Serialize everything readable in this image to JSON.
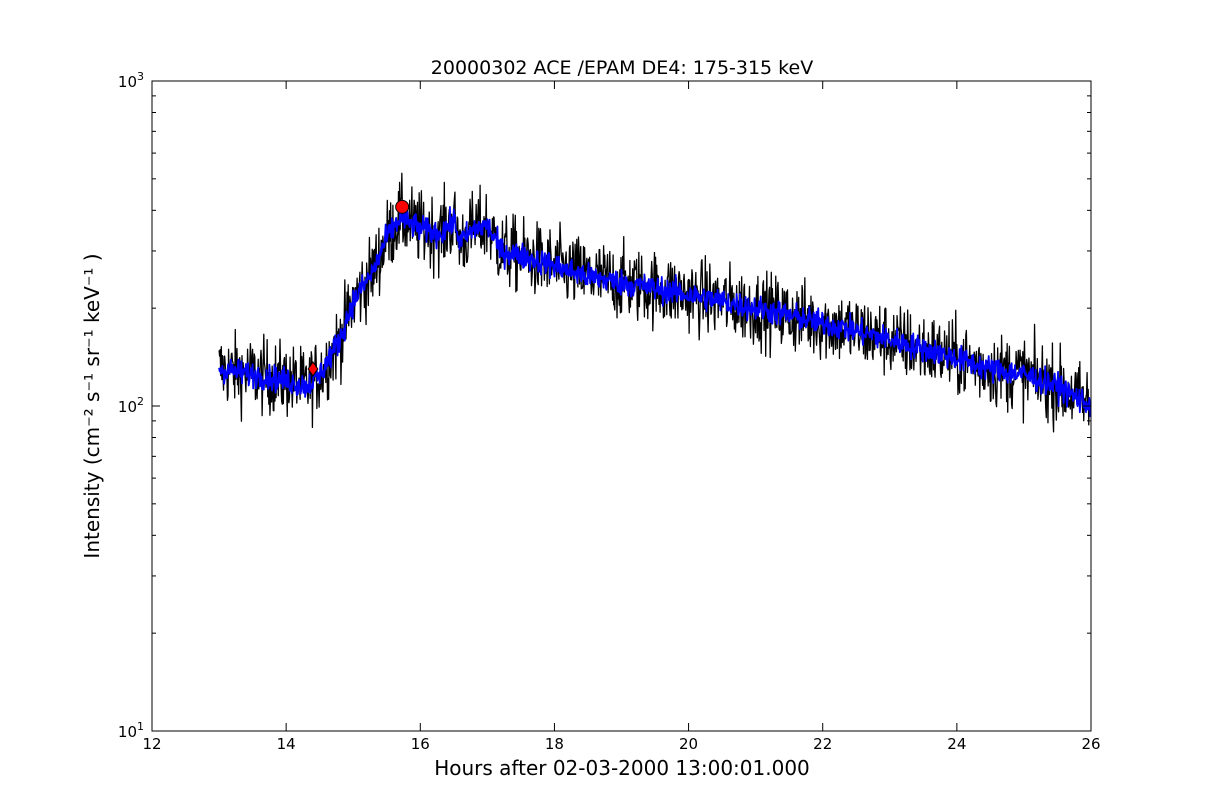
{
  "chart_data": {
    "type": "line",
    "title": "20000302 ACE /EPAM DE4: 175-315 keV",
    "xlabel": "Hours after 02-03-2000 13:00:01.000",
    "ylabel": "Intensity (cm⁻² s⁻¹ sr⁻¹ keV⁻¹ )",
    "x_scale": "linear",
    "y_scale": "log",
    "xlim": [
      12,
      26
    ],
    "ylim": [
      10,
      1000
    ],
    "x_ticks": [
      12,
      14,
      16,
      18,
      20,
      22,
      24,
      26
    ],
    "x_tick_labels": [
      "12",
      "14",
      "16",
      "18",
      "20",
      "22",
      "24",
      "26"
    ],
    "y_ticks": [
      10,
      100,
      1000
    ],
    "y_tick_labels": [
      {
        "base": "10",
        "exp": "1"
      },
      {
        "base": "10",
        "exp": "2"
      },
      {
        "base": "10",
        "exp": "3"
      }
    ],
    "grid": false,
    "colors": {
      "raw": "#000000",
      "smoothed": "#0000ff",
      "marker": "#ff0000"
    },
    "series": [
      {
        "role": "raw",
        "x": [
          13.0,
          13.5,
          14.0,
          14.3,
          14.5,
          14.8,
          15.0,
          15.3,
          15.5,
          15.7,
          16.0,
          16.3,
          16.5,
          16.6,
          16.8,
          17.0,
          17.2,
          17.5,
          18.0,
          18.5,
          19.0,
          19.5,
          20.0,
          20.5,
          21.0,
          21.5,
          22.0,
          22.5,
          23.0,
          23.5,
          24.0,
          24.5,
          25.0,
          25.5,
          26.0
        ],
        "values": [
          130,
          125,
          120,
          115,
          125,
          160,
          210,
          260,
          330,
          380,
          350,
          340,
          370,
          320,
          350,
          360,
          300,
          290,
          270,
          250,
          240,
          230,
          220,
          210,
          200,
          190,
          180,
          170,
          160,
          150,
          140,
          130,
          125,
          115,
          100
        ],
        "noise": 0.13
      },
      {
        "role": "smoothed",
        "x": [
          13.0,
          13.5,
          14.0,
          14.3,
          14.5,
          14.8,
          15.0,
          15.3,
          15.5,
          15.7,
          16.0,
          16.3,
          16.5,
          16.6,
          16.8,
          17.0,
          17.2,
          17.5,
          18.0,
          18.5,
          19.0,
          19.5,
          20.0,
          20.5,
          21.0,
          21.5,
          22.0,
          22.5,
          23.0,
          23.5,
          24.0,
          24.5,
          25.0,
          25.5,
          26.0
        ],
        "values": [
          130,
          125,
          120,
          115,
          125,
          160,
          210,
          260,
          330,
          380,
          350,
          340,
          370,
          320,
          350,
          360,
          300,
          290,
          270,
          250,
          240,
          230,
          220,
          210,
          200,
          190,
          180,
          170,
          160,
          150,
          140,
          130,
          125,
          115,
          100
        ],
        "noise": 0.045
      }
    ],
    "markers": [
      {
        "shape": "diamond",
        "x": 14.4,
        "y": 130
      },
      {
        "shape": "circle",
        "x": 15.73,
        "y": 410
      }
    ]
  }
}
